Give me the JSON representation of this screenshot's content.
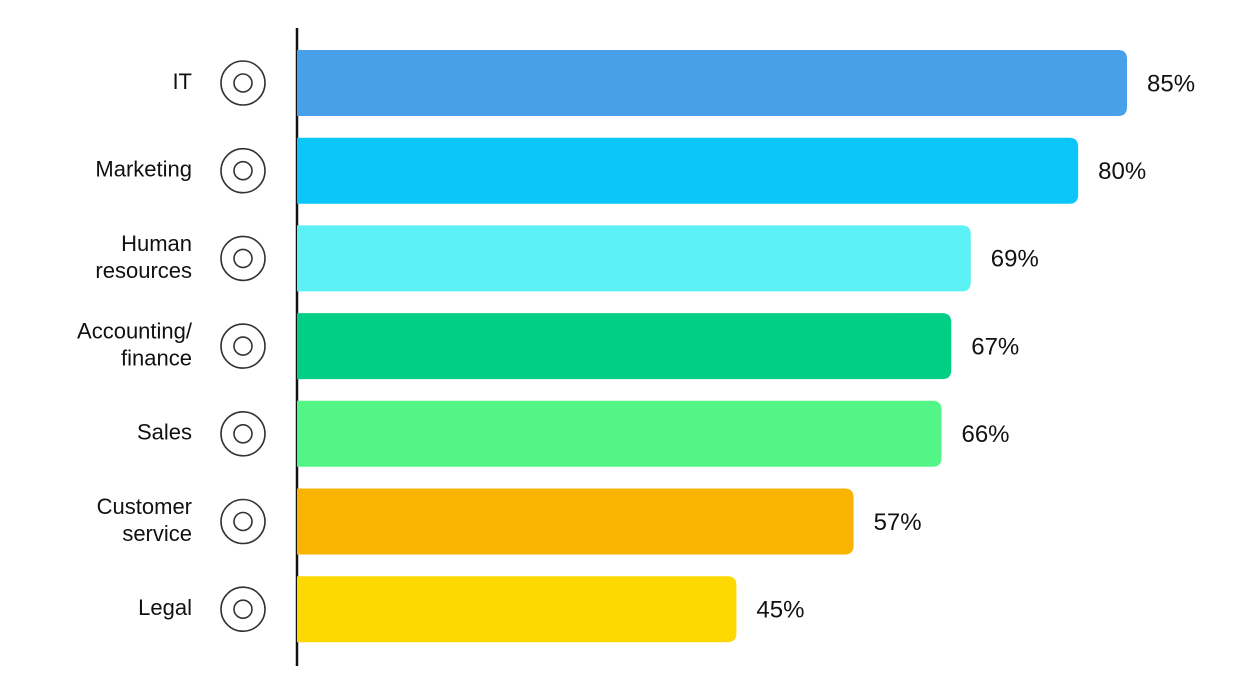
{
  "chart_data": {
    "type": "bar",
    "orientation": "horizontal",
    "categories": [
      "IT",
      "Marketing",
      "Human\nresources",
      "Accounting/\nfinance",
      "Sales",
      "Customer\nservice",
      "Legal"
    ],
    "values": [
      85,
      80,
      69,
      67,
      66,
      57,
      45
    ],
    "value_labels": [
      "85%",
      "80%",
      "69%",
      "67%",
      "66%",
      "57%",
      "45%"
    ],
    "colors": [
      "#47a0e8",
      "#0cc6f9",
      "#5cf1f4",
      "#02cf86",
      "#52f586",
      "#f9b301",
      "#fed801"
    ]
  }
}
